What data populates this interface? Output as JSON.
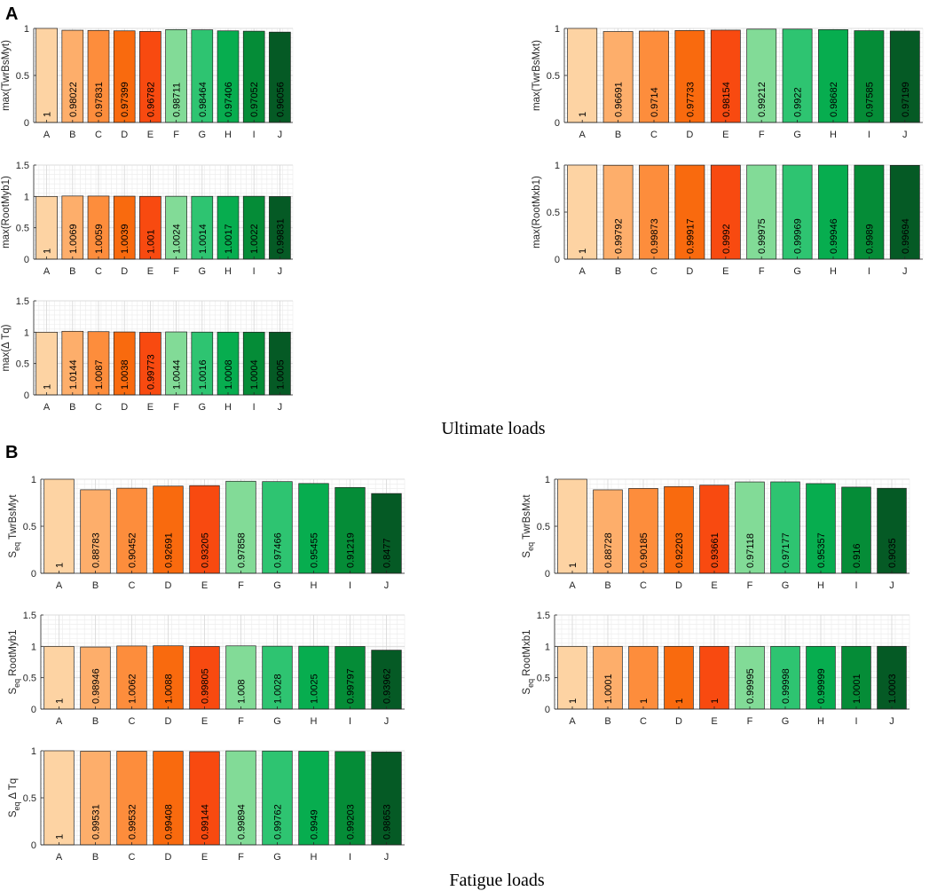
{
  "figure": {
    "panels": [
      {
        "letter": "A",
        "caption": "Ultimate loads"
      },
      {
        "letter": "B",
        "caption": "Fatigue loads"
      }
    ]
  },
  "colors": [
    "#FDD3A3",
    "#FDAE6B",
    "#FD8D3C",
    "#F96A0E",
    "#F84A10",
    "#82DB97",
    "#2EC471",
    "#07AD4F",
    "#058C37",
    "#055A25"
  ],
  "chart_data": [
    {
      "type": "bar",
      "panel": "A",
      "ylabel": "max(TwrBsMyt)",
      "categories": [
        "A",
        "B",
        "C",
        "D",
        "E",
        "F",
        "G",
        "H",
        "I",
        "J"
      ],
      "values": [
        1,
        0.98022,
        0.97831,
        0.97399,
        0.96782,
        0.98711,
        0.98464,
        0.97406,
        0.97052,
        0.96056
      ],
      "labels": [
        "1",
        "0.98022",
        "0.97831",
        "0.97399",
        "0.96782",
        "0.98711",
        "0.98464",
        "0.97406",
        "0.97052",
        "0.96056"
      ],
      "ylim": [
        0,
        1
      ],
      "yticks": [
        "0",
        "0.5",
        "1"
      ],
      "grid": true
    },
    {
      "type": "bar",
      "panel": "A",
      "ylabel": "max(TwrBsMxt)",
      "categories": [
        "A",
        "B",
        "C",
        "D",
        "E",
        "F",
        "G",
        "H",
        "I",
        "J"
      ],
      "values": [
        1,
        0.96691,
        0.9714,
        0.97733,
        0.98154,
        0.99212,
        0.9922,
        0.98682,
        0.97585,
        0.97199
      ],
      "labels": [
        "1",
        "0.96691",
        "0.9714",
        "0.97733",
        "0.98154",
        "0.99212",
        "0.9922",
        "0.98682",
        "0.97585",
        "0.97199"
      ],
      "ylim": [
        0,
        1
      ],
      "yticks": [
        "0",
        "0.5",
        "1"
      ],
      "grid": true
    },
    {
      "type": "bar",
      "panel": "A",
      "ylabel": "max(RootMyb1)",
      "categories": [
        "A",
        "B",
        "C",
        "D",
        "E",
        "F",
        "G",
        "H",
        "I",
        "J"
      ],
      "values": [
        1,
        1.0069,
        1.0059,
        1.0039,
        1.001,
        1.0024,
        1.0014,
        1.0017,
        1.0022,
        0.99831
      ],
      "labels": [
        "1",
        "1.0069",
        "1.0059",
        "1.0039",
        "1.001",
        "1.0024",
        "1.0014",
        "1.0017",
        "1.0022",
        "0.99831"
      ],
      "ylim": [
        0,
        1.5
      ],
      "yticks": [
        "0",
        "0.5",
        "1",
        "1.5"
      ],
      "grid": true
    },
    {
      "type": "bar",
      "panel": "A",
      "ylabel": "max(RootMxb1)",
      "categories": [
        "A",
        "B",
        "C",
        "D",
        "E",
        "F",
        "G",
        "H",
        "I",
        "J"
      ],
      "values": [
        1,
        0.99792,
        0.99873,
        0.99917,
        0.9992,
        0.99975,
        0.99969,
        0.99946,
        0.9989,
        0.99694
      ],
      "labels": [
        "1",
        "0.99792",
        "0.99873",
        "0.99917",
        "0.9992",
        "0.99975",
        "0.99969",
        "0.99946",
        "0.9989",
        "0.99694"
      ],
      "ylim": [
        0,
        1
      ],
      "yticks": [
        "0",
        "0.5",
        "1"
      ],
      "grid": true
    },
    {
      "type": "bar",
      "panel": "A",
      "ylabel": "max(Δ Tq)",
      "categories": [
        "A",
        "B",
        "C",
        "D",
        "E",
        "F",
        "G",
        "H",
        "I",
        "J"
      ],
      "values": [
        1,
        1.0144,
        1.0087,
        1.0038,
        0.99773,
        1.0044,
        1.0016,
        1.0008,
        1.0004,
        1.0005
      ],
      "labels": [
        "1",
        "1.0144",
        "1.0087",
        "1.0038",
        "0.99773",
        "1.0044",
        "1.0016",
        "1.0008",
        "1.0004",
        "1.0005"
      ],
      "ylim": [
        0,
        1.5
      ],
      "yticks": [
        "0",
        "0.5",
        "1",
        "1.5"
      ],
      "grid": true
    },
    {
      "type": "bar",
      "panel": "B",
      "ylabel": "S",
      "ylabel_sub": "eq",
      "ylabel_suffix": "TwrBsMyt",
      "categories": [
        "A",
        "B",
        "C",
        "D",
        "E",
        "F",
        "G",
        "H",
        "I",
        "J"
      ],
      "values": [
        1,
        0.88783,
        0.90452,
        0.92691,
        0.93205,
        0.97858,
        0.97466,
        0.95455,
        0.91219,
        0.8477
      ],
      "labels": [
        "1",
        "0.88783",
        "0.90452",
        "0.92691",
        "0.93205",
        "0.97858",
        "0.97466",
        "0.95455",
        "0.91219",
        "0.8477"
      ],
      "ylim": [
        0,
        1
      ],
      "yticks": [
        "0",
        "0.5",
        "1"
      ],
      "grid": true
    },
    {
      "type": "bar",
      "panel": "B",
      "ylabel": "S",
      "ylabel_sub": "eq",
      "ylabel_suffix": "TwrBsMxt",
      "categories": [
        "A",
        "B",
        "C",
        "D",
        "E",
        "F",
        "G",
        "H",
        "I",
        "J"
      ],
      "values": [
        1,
        0.88728,
        0.90185,
        0.92203,
        0.93661,
        0.97118,
        0.97177,
        0.95357,
        0.916,
        0.9035
      ],
      "labels": [
        "1",
        "0.88728",
        "0.90185",
        "0.92203",
        "0.93661",
        "0.97118",
        "0.97177",
        "0.95357",
        "0.916",
        "0.9035"
      ],
      "ylim": [
        0,
        1
      ],
      "yticks": [
        "0",
        "0.5",
        "1"
      ],
      "grid": true
    },
    {
      "type": "bar",
      "panel": "B",
      "ylabel": "S",
      "ylabel_sub": "eq",
      "ylabel_suffix": "RootMyb1",
      "categories": [
        "A",
        "B",
        "C",
        "D",
        "E",
        "F",
        "G",
        "H",
        "I",
        "J"
      ],
      "values": [
        1,
        0.98946,
        1.0062,
        1.0088,
        0.99805,
        1.008,
        1.0028,
        1.0025,
        0.99797,
        0.93962
      ],
      "labels": [
        "1",
        "0.98946",
        "1.0062",
        "1.0088",
        "0.99805",
        "1.008",
        "1.0028",
        "1.0025",
        "0.99797",
        "0.93962"
      ],
      "ylim": [
        0,
        1.5
      ],
      "yticks": [
        "0",
        "0.5",
        "1",
        "1.5"
      ],
      "grid": true
    },
    {
      "type": "bar",
      "panel": "B",
      "ylabel": "S",
      "ylabel_sub": "eq",
      "ylabel_suffix": "RootMxb1",
      "categories": [
        "A",
        "B",
        "C",
        "D",
        "E",
        "F",
        "G",
        "H",
        "I",
        "J"
      ],
      "values": [
        1,
        1.0001,
        1,
        1,
        1,
        0.99995,
        0.99998,
        0.99999,
        1.0001,
        1.0003
      ],
      "labels": [
        "1",
        "1.0001",
        "1",
        "1",
        "1",
        "0.99995",
        "0.99998",
        "0.99999",
        "1.0001",
        "1.0003"
      ],
      "ylim": [
        0,
        1.5
      ],
      "yticks": [
        "0",
        "0.5",
        "1",
        "1.5"
      ],
      "grid": true
    },
    {
      "type": "bar",
      "panel": "B",
      "ylabel": "S",
      "ylabel_sub": "eq",
      "ylabel_suffix": "Δ Tq",
      "categories": [
        "A",
        "B",
        "C",
        "D",
        "E",
        "F",
        "G",
        "H",
        "I",
        "J"
      ],
      "values": [
        1,
        0.99531,
        0.99532,
        0.99408,
        0.99144,
        0.99894,
        0.99762,
        0.9949,
        0.99203,
        0.98653
      ],
      "labels": [
        "1",
        "0.99531",
        "0.99532",
        "0.99408",
        "0.99144",
        "0.99894",
        "0.99762",
        "0.9949",
        "0.99203",
        "0.98653"
      ],
      "ylim": [
        0,
        1
      ],
      "yticks": [
        "0",
        "0.5",
        "1"
      ],
      "grid": true
    }
  ]
}
